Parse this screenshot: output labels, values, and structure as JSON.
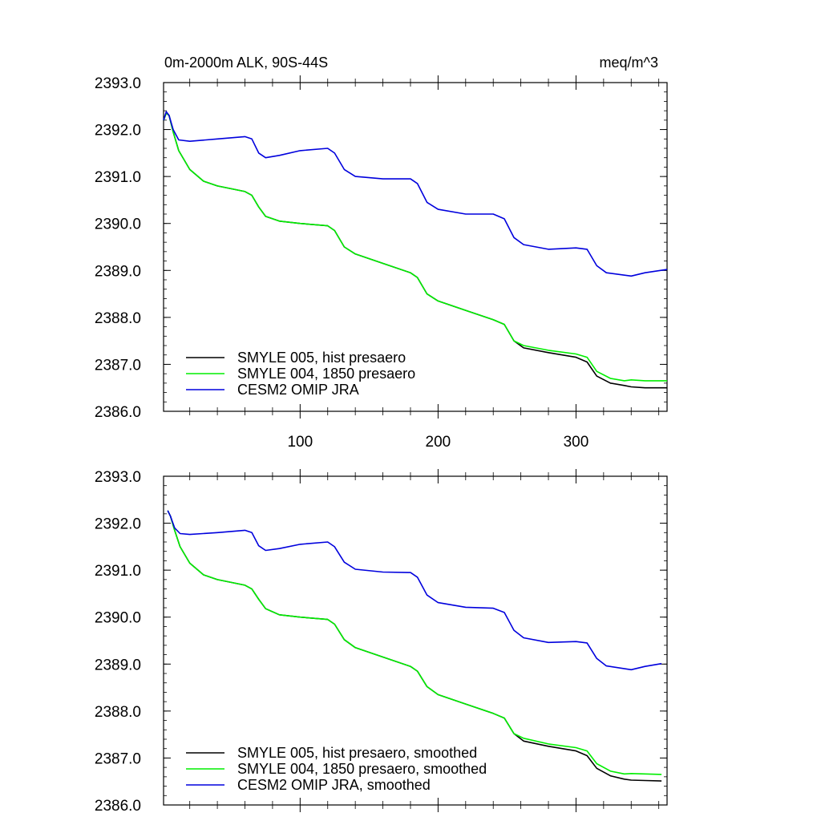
{
  "header": {
    "left_title": "0m-2000m ALK, 90S-44S",
    "right_title": "meq/m^3"
  },
  "chart_data": [
    {
      "type": "line",
      "title": "0m-2000m ALK, 90S-44S",
      "units_label": "meq/m^3",
      "xlim": [
        1,
        366
      ],
      "ylim": [
        2386.0,
        2393.0
      ],
      "x_tick_values": [
        100,
        200,
        300
      ],
      "x_tick_labels": [
        "100",
        "200",
        "300"
      ],
      "x_tick_labels_shown": true,
      "y_tick_values": [
        2386,
        2387,
        2388,
        2389,
        2390,
        2391,
        2392,
        2393
      ],
      "y_tick_labels": [
        "2386.0",
        "2387.0",
        "2388.0",
        "2389.0",
        "2390.0",
        "2391.0",
        "2392.0",
        "2393.0"
      ],
      "grid": false,
      "legend_position": "bottom-left",
      "series": [
        {
          "name": "SMYLE 005, hist presaero",
          "color": "#000000",
          "points": [
            [
              1,
              2392.2
            ],
            [
              3,
              2392.35
            ],
            [
              5,
              2392.3
            ],
            [
              8,
              2391.95
            ],
            [
              12,
              2391.55
            ],
            [
              20,
              2391.15
            ],
            [
              30,
              2390.9
            ],
            [
              40,
              2390.8
            ],
            [
              60,
              2390.68
            ],
            [
              65,
              2390.6
            ],
            [
              70,
              2390.35
            ],
            [
              75,
              2390.15
            ],
            [
              85,
              2390.05
            ],
            [
              100,
              2390.0
            ],
            [
              120,
              2389.95
            ],
            [
              125,
              2389.85
            ],
            [
              132,
              2389.5
            ],
            [
              140,
              2389.35
            ],
            [
              160,
              2389.15
            ],
            [
              180,
              2388.95
            ],
            [
              185,
              2388.85
            ],
            [
              192,
              2388.5
            ],
            [
              200,
              2388.35
            ],
            [
              220,
              2388.15
            ],
            [
              240,
              2387.95
            ],
            [
              248,
              2387.85
            ],
            [
              255,
              2387.5
            ],
            [
              262,
              2387.35
            ],
            [
              280,
              2387.25
            ],
            [
              300,
              2387.15
            ],
            [
              308,
              2387.05
            ],
            [
              315,
              2386.75
            ],
            [
              325,
              2386.6
            ],
            [
              335,
              2386.55
            ],
            [
              340,
              2386.52
            ],
            [
              350,
              2386.5
            ],
            [
              366,
              2386.5
            ]
          ]
        },
        {
          "name": "SMYLE 004, 1850 presaero",
          "color": "#00ee00",
          "points": [
            [
              1,
              2392.2
            ],
            [
              3,
              2392.35
            ],
            [
              5,
              2392.3
            ],
            [
              8,
              2391.95
            ],
            [
              12,
              2391.55
            ],
            [
              20,
              2391.15
            ],
            [
              30,
              2390.9
            ],
            [
              40,
              2390.8
            ],
            [
              60,
              2390.68
            ],
            [
              65,
              2390.6
            ],
            [
              70,
              2390.35
            ],
            [
              75,
              2390.15
            ],
            [
              85,
              2390.05
            ],
            [
              100,
              2390.0
            ],
            [
              120,
              2389.95
            ],
            [
              125,
              2389.85
            ],
            [
              132,
              2389.5
            ],
            [
              140,
              2389.35
            ],
            [
              160,
              2389.15
            ],
            [
              180,
              2388.95
            ],
            [
              185,
              2388.85
            ],
            [
              192,
              2388.5
            ],
            [
              200,
              2388.35
            ],
            [
              220,
              2388.15
            ],
            [
              240,
              2387.95
            ],
            [
              248,
              2387.85
            ],
            [
              255,
              2387.5
            ],
            [
              262,
              2387.4
            ],
            [
              280,
              2387.3
            ],
            [
              300,
              2387.22
            ],
            [
              308,
              2387.15
            ],
            [
              315,
              2386.85
            ],
            [
              325,
              2386.7
            ],
            [
              335,
              2386.65
            ],
            [
              340,
              2386.67
            ],
            [
              350,
              2386.65
            ],
            [
              366,
              2386.65
            ]
          ]
        },
        {
          "name": "CESM2 OMIP JRA",
          "color": "#0000dd",
          "points": [
            [
              1,
              2392.2
            ],
            [
              3,
              2392.38
            ],
            [
              5,
              2392.3
            ],
            [
              8,
              2392.0
            ],
            [
              12,
              2391.78
            ],
            [
              20,
              2391.75
            ],
            [
              40,
              2391.8
            ],
            [
              60,
              2391.85
            ],
            [
              65,
              2391.8
            ],
            [
              70,
              2391.5
            ],
            [
              75,
              2391.4
            ],
            [
              85,
              2391.45
            ],
            [
              100,
              2391.55
            ],
            [
              120,
              2391.6
            ],
            [
              125,
              2391.5
            ],
            [
              132,
              2391.15
            ],
            [
              140,
              2391.0
            ],
            [
              160,
              2390.95
            ],
            [
              180,
              2390.95
            ],
            [
              185,
              2390.85
            ],
            [
              192,
              2390.45
            ],
            [
              200,
              2390.3
            ],
            [
              220,
              2390.2
            ],
            [
              240,
              2390.2
            ],
            [
              248,
              2390.1
            ],
            [
              255,
              2389.7
            ],
            [
              262,
              2389.55
            ],
            [
              280,
              2389.45
            ],
            [
              300,
              2389.48
            ],
            [
              308,
              2389.45
            ],
            [
              315,
              2389.1
            ],
            [
              322,
              2388.95
            ],
            [
              340,
              2388.88
            ],
            [
              350,
              2388.95
            ],
            [
              366,
              2389.02
            ]
          ]
        }
      ]
    },
    {
      "type": "line",
      "xlim": [
        1,
        366
      ],
      "ylim": [
        2386.0,
        2393.0
      ],
      "x_tick_values": [
        100,
        200,
        300
      ],
      "x_tick_labels_shown": false,
      "y_tick_values": [
        2386,
        2387,
        2388,
        2389,
        2390,
        2391,
        2392,
        2393
      ],
      "y_tick_labels": [
        "2386.0",
        "2387.0",
        "2388.0",
        "2389.0",
        "2390.0",
        "2391.0",
        "2392.0",
        "2393.0"
      ],
      "grid": false,
      "legend_position": "bottom-left",
      "series": [
        {
          "name": "SMYLE 005, hist presaero, smoothed",
          "color": "#000000",
          "points": [
            [
              4,
              2392.27
            ],
            [
              6,
              2392.15
            ],
            [
              9,
              2391.85
            ],
            [
              13,
              2391.5
            ],
            [
              20,
              2391.15
            ],
            [
              30,
              2390.9
            ],
            [
              40,
              2390.8
            ],
            [
              60,
              2390.68
            ],
            [
              65,
              2390.6
            ],
            [
              70,
              2390.38
            ],
            [
              75,
              2390.18
            ],
            [
              85,
              2390.05
            ],
            [
              100,
              2390.0
            ],
            [
              120,
              2389.95
            ],
            [
              125,
              2389.85
            ],
            [
              132,
              2389.52
            ],
            [
              140,
              2389.35
            ],
            [
              160,
              2389.15
            ],
            [
              180,
              2388.95
            ],
            [
              185,
              2388.85
            ],
            [
              192,
              2388.52
            ],
            [
              200,
              2388.35
            ],
            [
              220,
              2388.15
            ],
            [
              240,
              2387.95
            ],
            [
              248,
              2387.85
            ],
            [
              255,
              2387.52
            ],
            [
              262,
              2387.36
            ],
            [
              280,
              2387.25
            ],
            [
              300,
              2387.15
            ],
            [
              308,
              2387.05
            ],
            [
              315,
              2386.78
            ],
            [
              325,
              2386.62
            ],
            [
              335,
              2386.55
            ],
            [
              340,
              2386.53
            ],
            [
              350,
              2386.52
            ],
            [
              362,
              2386.51
            ]
          ]
        },
        {
          "name": "SMYLE 004, 1850 presaero, smoothed",
          "color": "#00ee00",
          "points": [
            [
              4,
              2392.27
            ],
            [
              6,
              2392.15
            ],
            [
              9,
              2391.85
            ],
            [
              13,
              2391.5
            ],
            [
              20,
              2391.15
            ],
            [
              30,
              2390.9
            ],
            [
              40,
              2390.8
            ],
            [
              60,
              2390.68
            ],
            [
              65,
              2390.6
            ],
            [
              70,
              2390.38
            ],
            [
              75,
              2390.18
            ],
            [
              85,
              2390.05
            ],
            [
              100,
              2390.0
            ],
            [
              120,
              2389.95
            ],
            [
              125,
              2389.85
            ],
            [
              132,
              2389.52
            ],
            [
              140,
              2389.35
            ],
            [
              160,
              2389.15
            ],
            [
              180,
              2388.95
            ],
            [
              185,
              2388.85
            ],
            [
              192,
              2388.52
            ],
            [
              200,
              2388.35
            ],
            [
              220,
              2388.15
            ],
            [
              240,
              2387.95
            ],
            [
              248,
              2387.85
            ],
            [
              255,
              2387.52
            ],
            [
              262,
              2387.42
            ],
            [
              280,
              2387.3
            ],
            [
              300,
              2387.22
            ],
            [
              308,
              2387.15
            ],
            [
              315,
              2386.88
            ],
            [
              325,
              2386.72
            ],
            [
              335,
              2386.66
            ],
            [
              340,
              2386.67
            ],
            [
              350,
              2386.66
            ],
            [
              362,
              2386.65
            ]
          ]
        },
        {
          "name": "CESM2 OMIP JRA, smoothed",
          "color": "#0000dd",
          "points": [
            [
              4,
              2392.27
            ],
            [
              6,
              2392.15
            ],
            [
              9,
              2391.9
            ],
            [
              13,
              2391.78
            ],
            [
              20,
              2391.76
            ],
            [
              40,
              2391.8
            ],
            [
              60,
              2391.85
            ],
            [
              65,
              2391.8
            ],
            [
              70,
              2391.52
            ],
            [
              75,
              2391.42
            ],
            [
              85,
              2391.46
            ],
            [
              100,
              2391.55
            ],
            [
              120,
              2391.6
            ],
            [
              125,
              2391.5
            ],
            [
              132,
              2391.17
            ],
            [
              140,
              2391.02
            ],
            [
              160,
              2390.96
            ],
            [
              180,
              2390.95
            ],
            [
              185,
              2390.85
            ],
            [
              192,
              2390.47
            ],
            [
              200,
              2390.31
            ],
            [
              220,
              2390.21
            ],
            [
              240,
              2390.19
            ],
            [
              248,
              2390.1
            ],
            [
              255,
              2389.72
            ],
            [
              262,
              2389.56
            ],
            [
              280,
              2389.46
            ],
            [
              300,
              2389.48
            ],
            [
              308,
              2389.45
            ],
            [
              315,
              2389.12
            ],
            [
              322,
              2388.96
            ],
            [
              340,
              2388.88
            ],
            [
              350,
              2388.95
            ],
            [
              362,
              2389.01
            ]
          ]
        }
      ]
    }
  ]
}
